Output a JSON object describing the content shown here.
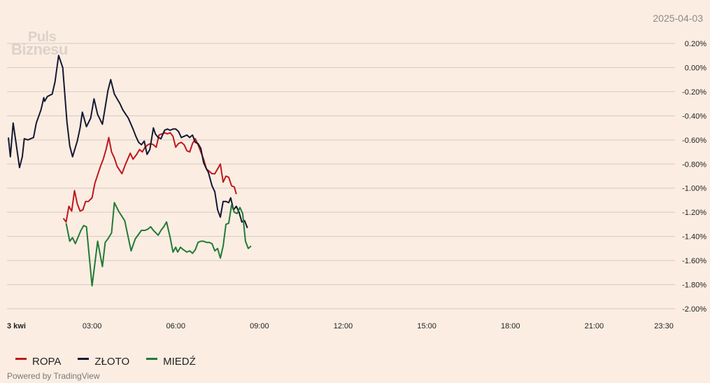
{
  "date_label": "2025-04-03",
  "logo": {
    "line1": "Puls",
    "line2": "Biznesu"
  },
  "powered_by": "Powered by TradingView",
  "legend": [
    {
      "name": "ROPA",
      "color": "#c0181d"
    },
    {
      "name": "ZŁOTO",
      "color": "#161833"
    },
    {
      "name": "MIEDŹ",
      "color": "#227a36"
    }
  ],
  "chart_data": {
    "type": "line",
    "x_ticks": [
      {
        "label": "3 kwi",
        "hour": 0
      },
      {
        "label": "03:00",
        "hour": 3
      },
      {
        "label": "06:00",
        "hour": 6
      },
      {
        "label": "09:00",
        "hour": 9
      },
      {
        "label": "12:00",
        "hour": 12
      },
      {
        "label": "15:00",
        "hour": 15
      },
      {
        "label": "18:00",
        "hour": 18
      },
      {
        "label": "21:00",
        "hour": 21
      },
      {
        "label": "23:30",
        "hour": 23.5
      }
    ],
    "y_ticks": [
      0.2,
      0.0,
      -0.2,
      -0.4,
      -0.6,
      -0.8,
      -1.0,
      -1.2,
      -1.4,
      -1.6,
      -1.8,
      -2.0
    ],
    "y_tick_labels": [
      "0.20%",
      "0.00%",
      "-0.20%",
      "-0.40%",
      "-0.60%",
      "-0.80%",
      "-1.00%",
      "-1.20%",
      "-1.40%",
      "-1.60%",
      "-1.80%",
      "-2.00%"
    ],
    "ylim": [
      -2.0,
      0.2
    ],
    "xlim_hours": [
      -0.05,
      23.9
    ],
    "grid": true,
    "legend_position": "bottom-left",
    "series": [
      {
        "name": "ROPA",
        "color": "#c0181d",
        "points": [
          [
            1.97,
            -1.25
          ],
          [
            2.07,
            -1.28
          ],
          [
            2.17,
            -1.15
          ],
          [
            2.27,
            -1.19
          ],
          [
            2.37,
            -1.02
          ],
          [
            2.47,
            -1.13
          ],
          [
            2.57,
            -1.19
          ],
          [
            2.67,
            -1.18
          ],
          [
            2.77,
            -1.11
          ],
          [
            2.87,
            -1.11
          ],
          [
            3.0,
            -1.08
          ],
          [
            3.1,
            -0.96
          ],
          [
            3.3,
            -0.82
          ],
          [
            3.4,
            -0.76
          ],
          [
            3.5,
            -0.68
          ],
          [
            3.6,
            -0.58
          ],
          [
            3.7,
            -0.7
          ],
          [
            3.8,
            -0.75
          ],
          [
            3.9,
            -0.82
          ],
          [
            4.07,
            -0.88
          ],
          [
            4.2,
            -0.8
          ],
          [
            4.37,
            -0.71
          ],
          [
            4.47,
            -0.76
          ],
          [
            4.6,
            -0.72
          ],
          [
            4.7,
            -0.68
          ],
          [
            4.8,
            -0.7
          ],
          [
            4.9,
            -0.66
          ],
          [
            5.0,
            -0.64
          ],
          [
            5.1,
            -0.63
          ],
          [
            5.2,
            -0.64
          ],
          [
            5.3,
            -0.66
          ],
          [
            5.4,
            -0.56
          ],
          [
            5.6,
            -0.54
          ],
          [
            5.7,
            -0.55
          ],
          [
            5.8,
            -0.54
          ],
          [
            5.9,
            -0.57
          ],
          [
            6.0,
            -0.66
          ],
          [
            6.1,
            -0.63
          ],
          [
            6.2,
            -0.62
          ],
          [
            6.3,
            -0.64
          ],
          [
            6.4,
            -0.69
          ],
          [
            6.5,
            -0.7
          ],
          [
            6.6,
            -0.63
          ],
          [
            6.7,
            -0.59
          ],
          [
            6.8,
            -0.64
          ],
          [
            6.9,
            -0.7
          ],
          [
            7.0,
            -0.76
          ],
          [
            7.1,
            -0.84
          ],
          [
            7.2,
            -0.86
          ],
          [
            7.3,
            -0.88
          ],
          [
            7.4,
            -0.88
          ],
          [
            7.5,
            -0.84
          ],
          [
            7.6,
            -0.8
          ],
          [
            7.7,
            -0.95
          ],
          [
            7.8,
            -0.9
          ],
          [
            7.9,
            -0.91
          ],
          [
            8.0,
            -0.98
          ],
          [
            8.1,
            -0.99
          ],
          [
            8.17,
            -1.05
          ]
        ]
      },
      {
        "name": "ZŁOTO",
        "color": "#161833",
        "points": [
          [
            0.0,
            -0.58
          ],
          [
            0.07,
            -0.74
          ],
          [
            0.17,
            -0.46
          ],
          [
            0.27,
            -0.62
          ],
          [
            0.4,
            -0.83
          ],
          [
            0.5,
            -0.74
          ],
          [
            0.57,
            -0.59
          ],
          [
            0.7,
            -0.6
          ],
          [
            0.8,
            -0.59
          ],
          [
            0.9,
            -0.58
          ],
          [
            1.0,
            -0.46
          ],
          [
            1.17,
            -0.35
          ],
          [
            1.27,
            -0.25
          ],
          [
            1.3,
            -0.28
          ],
          [
            1.4,
            -0.24
          ],
          [
            1.57,
            -0.22
          ],
          [
            1.67,
            -0.12
          ],
          [
            1.8,
            0.1
          ],
          [
            1.95,
            0.0
          ],
          [
            2.1,
            -0.45
          ],
          [
            2.2,
            -0.65
          ],
          [
            2.3,
            -0.74
          ],
          [
            2.47,
            -0.61
          ],
          [
            2.57,
            -0.5
          ],
          [
            2.65,
            -0.37
          ],
          [
            2.8,
            -0.49
          ],
          [
            2.95,
            -0.42
          ],
          [
            3.07,
            -0.26
          ],
          [
            3.2,
            -0.39
          ],
          [
            3.37,
            -0.47
          ],
          [
            3.47,
            -0.33
          ],
          [
            3.57,
            -0.19
          ],
          [
            3.67,
            -0.1
          ],
          [
            3.8,
            -0.22
          ],
          [
            4.0,
            -0.3
          ],
          [
            4.1,
            -0.35
          ],
          [
            4.3,
            -0.42
          ],
          [
            4.47,
            -0.51
          ],
          [
            4.57,
            -0.57
          ],
          [
            4.67,
            -0.62
          ],
          [
            4.77,
            -0.64
          ],
          [
            4.87,
            -0.61
          ],
          [
            4.97,
            -0.72
          ],
          [
            5.07,
            -0.68
          ],
          [
            5.2,
            -0.5
          ],
          [
            5.27,
            -0.55
          ],
          [
            5.37,
            -0.58
          ],
          [
            5.47,
            -0.59
          ],
          [
            5.6,
            -0.52
          ],
          [
            5.7,
            -0.51
          ],
          [
            5.8,
            -0.52
          ],
          [
            5.9,
            -0.51
          ],
          [
            6.0,
            -0.51
          ],
          [
            6.1,
            -0.53
          ],
          [
            6.2,
            -0.58
          ],
          [
            6.3,
            -0.57
          ],
          [
            6.4,
            -0.56
          ],
          [
            6.5,
            -0.58
          ],
          [
            6.6,
            -0.56
          ],
          [
            6.7,
            -0.62
          ],
          [
            6.8,
            -0.63
          ],
          [
            6.9,
            -0.67
          ],
          [
            7.0,
            -0.79
          ],
          [
            7.1,
            -0.84
          ],
          [
            7.17,
            -0.87
          ],
          [
            7.3,
            -0.98
          ],
          [
            7.4,
            -1.03
          ],
          [
            7.5,
            -1.18
          ],
          [
            7.6,
            -1.24
          ],
          [
            7.7,
            -1.11
          ],
          [
            7.8,
            -1.11
          ],
          [
            7.9,
            -1.12
          ],
          [
            7.97,
            -1.08
          ],
          [
            8.07,
            -1.18
          ],
          [
            8.17,
            -1.15
          ],
          [
            8.27,
            -1.2
          ],
          [
            8.37,
            -1.28
          ],
          [
            8.47,
            -1.27
          ],
          [
            8.57,
            -1.33
          ]
        ]
      },
      {
        "name": "MIEDŹ",
        "color": "#227a36",
        "points": [
          [
            2.07,
            -1.29
          ],
          [
            2.2,
            -1.44
          ],
          [
            2.3,
            -1.41
          ],
          [
            2.4,
            -1.46
          ],
          [
            2.6,
            -1.35
          ],
          [
            2.7,
            -1.31
          ],
          [
            2.8,
            -1.32
          ],
          [
            3.0,
            -1.81
          ],
          [
            3.2,
            -1.44
          ],
          [
            3.37,
            -1.65
          ],
          [
            3.47,
            -1.45
          ],
          [
            3.57,
            -1.42
          ],
          [
            3.7,
            -1.37
          ],
          [
            3.8,
            -1.12
          ],
          [
            3.95,
            -1.19
          ],
          [
            4.17,
            -1.27
          ],
          [
            4.4,
            -1.52
          ],
          [
            4.55,
            -1.42
          ],
          [
            4.77,
            -1.35
          ],
          [
            4.9,
            -1.35
          ],
          [
            5.0,
            -1.34
          ],
          [
            5.1,
            -1.32
          ],
          [
            5.2,
            -1.35
          ],
          [
            5.37,
            -1.39
          ],
          [
            5.47,
            -1.35
          ],
          [
            5.57,
            -1.32
          ],
          [
            5.67,
            -1.28
          ],
          [
            5.8,
            -1.41
          ],
          [
            5.9,
            -1.53
          ],
          [
            6.0,
            -1.49
          ],
          [
            6.07,
            -1.53
          ],
          [
            6.17,
            -1.49
          ],
          [
            6.27,
            -1.51
          ],
          [
            6.4,
            -1.53
          ],
          [
            6.5,
            -1.52
          ],
          [
            6.6,
            -1.54
          ],
          [
            6.7,
            -1.51
          ],
          [
            6.8,
            -1.45
          ],
          [
            6.9,
            -1.44
          ],
          [
            7.0,
            -1.44
          ],
          [
            7.1,
            -1.45
          ],
          [
            7.2,
            -1.45
          ],
          [
            7.3,
            -1.46
          ],
          [
            7.4,
            -1.52
          ],
          [
            7.5,
            -1.5
          ],
          [
            7.6,
            -1.58
          ],
          [
            7.7,
            -1.48
          ],
          [
            7.8,
            -1.3
          ],
          [
            7.9,
            -1.29
          ],
          [
            8.0,
            -1.14
          ],
          [
            8.1,
            -1.2
          ],
          [
            8.2,
            -1.21
          ],
          [
            8.3,
            -1.16
          ],
          [
            8.4,
            -1.21
          ],
          [
            8.5,
            -1.44
          ],
          [
            8.6,
            -1.5
          ],
          [
            8.7,
            -1.48
          ]
        ]
      }
    ]
  }
}
